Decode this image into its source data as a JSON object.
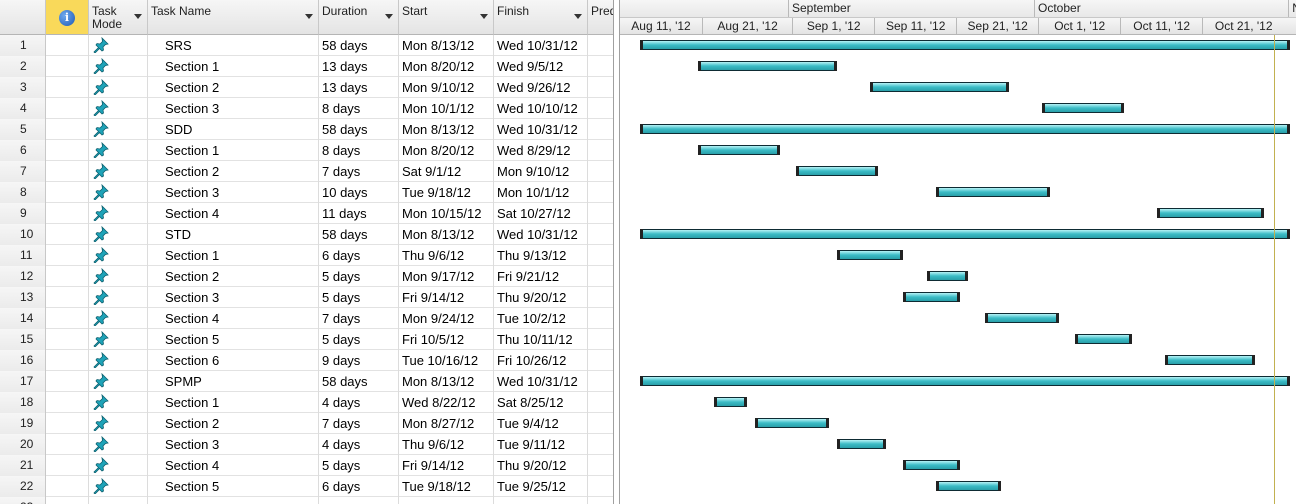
{
  "columns": {
    "task_mode": "Task\nMode",
    "task_name": "Task Name",
    "duration": "Duration",
    "start": "Start",
    "finish": "Finish",
    "predecessors": "Pred"
  },
  "timescale": {
    "months": [
      {
        "label": "",
        "start": "2012-08-07"
      },
      {
        "label": "September",
        "start": "2012-08-31"
      },
      {
        "label": "October",
        "start": "2012-09-30"
      },
      {
        "label": "N",
        "start": "2012-10-31"
      }
    ],
    "ticks": [
      {
        "label": "Aug 11, '12",
        "date": "2012-08-11"
      },
      {
        "label": "Aug 21, '12",
        "date": "2012-08-21"
      },
      {
        "label": "Sep 1, '12",
        "date": "2012-09-01"
      },
      {
        "label": "Sep 11, '12",
        "date": "2012-09-11"
      },
      {
        "label": "Sep 21, '12",
        "date": "2012-09-21"
      },
      {
        "label": "Oct 1, '12",
        "date": "2012-10-01"
      },
      {
        "label": "Oct 11, '12",
        "date": "2012-10-11"
      },
      {
        "label": "Oct 21, '12",
        "date": "2012-10-21"
      }
    ]
  },
  "colors": {
    "bar": "#3bbcc6",
    "today_line": "#c2b150",
    "indicator_header": "#f9d95a",
    "pin": "#1ea3b8"
  },
  "tasks": [
    {
      "id": "1",
      "name": "SRS",
      "duration": "58 days",
      "start": "Mon 8/13/12",
      "finish": "Wed 10/31/12",
      "bar_start": "2012-08-13",
      "bar_end": "2012-10-31"
    },
    {
      "id": "2",
      "name": "Section 1",
      "duration": "13 days",
      "start": "Mon 8/20/12",
      "finish": "Wed 9/5/12",
      "bar_start": "2012-08-20",
      "bar_end": "2012-09-05"
    },
    {
      "id": "3",
      "name": "Section 2",
      "duration": "13 days",
      "start": "Mon 9/10/12",
      "finish": "Wed 9/26/12",
      "bar_start": "2012-09-10",
      "bar_end": "2012-09-26"
    },
    {
      "id": "4",
      "name": "Section 3",
      "duration": "8 days",
      "start": "Mon 10/1/12",
      "finish": "Wed 10/10/12",
      "bar_start": "2012-10-01",
      "bar_end": "2012-10-10"
    },
    {
      "id": "5",
      "name": "SDD",
      "duration": "58 days",
      "start": "Mon 8/13/12",
      "finish": "Wed 10/31/12",
      "bar_start": "2012-08-13",
      "bar_end": "2012-10-31"
    },
    {
      "id": "6",
      "name": "Section 1",
      "duration": "8 days",
      "start": "Mon 8/20/12",
      "finish": "Wed 8/29/12",
      "bar_start": "2012-08-20",
      "bar_end": "2012-08-29"
    },
    {
      "id": "7",
      "name": "Section 2",
      "duration": "7 days",
      "start": "Sat 9/1/12",
      "finish": "Mon 9/10/12",
      "bar_start": "2012-09-01",
      "bar_end": "2012-09-10"
    },
    {
      "id": "8",
      "name": "Section 3",
      "duration": "10 days",
      "start": "Tue 9/18/12",
      "finish": "Mon 10/1/12",
      "bar_start": "2012-09-18",
      "bar_end": "2012-10-01"
    },
    {
      "id": "9",
      "name": "Section 4",
      "duration": "11 days",
      "start": "Mon 10/15/12",
      "finish": "Sat 10/27/12",
      "bar_start": "2012-10-15",
      "bar_end": "2012-10-27"
    },
    {
      "id": "10",
      "name": "STD",
      "duration": "58 days",
      "start": "Mon 8/13/12",
      "finish": "Wed 10/31/12",
      "bar_start": "2012-08-13",
      "bar_end": "2012-10-31"
    },
    {
      "id": "11",
      "name": "Section 1",
      "duration": "6 days",
      "start": "Thu 9/6/12",
      "finish": "Thu 9/13/12",
      "bar_start": "2012-09-06",
      "bar_end": "2012-09-13"
    },
    {
      "id": "12",
      "name": "Section 2",
      "duration": "5 days",
      "start": "Mon 9/17/12",
      "finish": "Fri 9/21/12",
      "bar_start": "2012-09-17",
      "bar_end": "2012-09-21"
    },
    {
      "id": "13",
      "name": "Section 3",
      "duration": "5 days",
      "start": "Fri 9/14/12",
      "finish": "Thu 9/20/12",
      "bar_start": "2012-09-14",
      "bar_end": "2012-09-20"
    },
    {
      "id": "14",
      "name": "Section 4",
      "duration": "7 days",
      "start": "Mon 9/24/12",
      "finish": "Tue 10/2/12",
      "bar_start": "2012-09-24",
      "bar_end": "2012-10-02"
    },
    {
      "id": "15",
      "name": "Section 5",
      "duration": "5 days",
      "start": "Fri 10/5/12",
      "finish": "Thu 10/11/12",
      "bar_start": "2012-10-05",
      "bar_end": "2012-10-11"
    },
    {
      "id": "16",
      "name": "Section 6",
      "duration": "9 days",
      "start": "Tue 10/16/12",
      "finish": "Fri 10/26/12",
      "bar_start": "2012-10-16",
      "bar_end": "2012-10-26"
    },
    {
      "id": "17",
      "name": "SPMP",
      "duration": "58 days",
      "start": "Mon 8/13/12",
      "finish": "Wed 10/31/12",
      "bar_start": "2012-08-13",
      "bar_end": "2012-10-31"
    },
    {
      "id": "18",
      "name": "Section 1",
      "duration": "4 days",
      "start": "Wed 8/22/12",
      "finish": "Sat 8/25/12",
      "bar_start": "2012-08-22",
      "bar_end": "2012-08-25"
    },
    {
      "id": "19",
      "name": "Section 2",
      "duration": "7 days",
      "start": "Mon 8/27/12",
      "finish": "Tue 9/4/12",
      "bar_start": "2012-08-27",
      "bar_end": "2012-09-04"
    },
    {
      "id": "20",
      "name": "Section 3",
      "duration": "4 days",
      "start": "Thu 9/6/12",
      "finish": "Tue 9/11/12",
      "bar_start": "2012-09-06",
      "bar_end": "2012-09-11"
    },
    {
      "id": "21",
      "name": "Section 4",
      "duration": "5 days",
      "start": "Fri 9/14/12",
      "finish": "Thu 9/20/12",
      "bar_start": "2012-09-14",
      "bar_end": "2012-09-20"
    },
    {
      "id": "22",
      "name": "Section 5",
      "duration": "6 days",
      "start": "Tue 9/18/12",
      "finish": "Tue 9/25/12",
      "bar_start": "2012-09-18",
      "bar_end": "2012-09-25"
    },
    {
      "id": "23",
      "name": "",
      "duration": "",
      "start": "",
      "finish": "",
      "bar_start": "",
      "bar_end": ""
    }
  ]
}
